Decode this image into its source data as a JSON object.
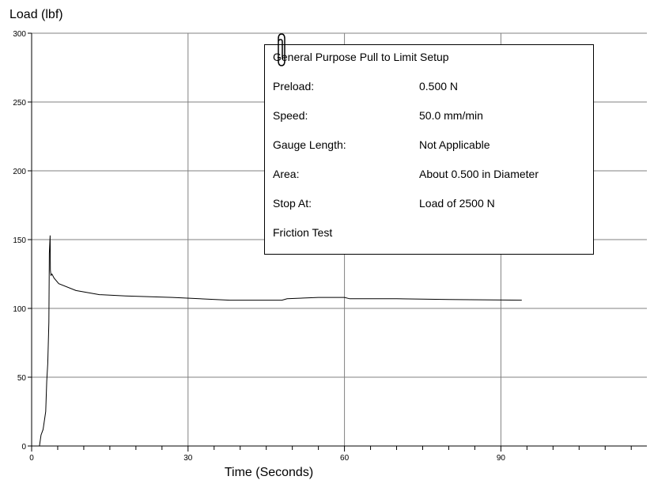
{
  "chart_data": {
    "type": "line",
    "title": "",
    "xlabel": "Time (Seconds)",
    "ylabel": "Load (lbf)",
    "xlim": [
      0,
      118
    ],
    "ylim": [
      0,
      300
    ],
    "x_ticks": [
      0,
      30,
      60,
      90
    ],
    "y_ticks": [
      0,
      50,
      100,
      150,
      200,
      250,
      300
    ],
    "grid": true,
    "series": [
      {
        "x": [
          1.5,
          1.8,
          2.2,
          2.7,
          2.9,
          3.1,
          3.3,
          3.4,
          3.55,
          3.6,
          3.7,
          3.9,
          4.3,
          5.2,
          8.5,
          13,
          18,
          27,
          38,
          48,
          49,
          55,
          60,
          61,
          70,
          80,
          94
        ],
        "values": [
          0,
          8,
          12,
          25,
          47,
          60,
          90,
          140,
          153,
          128,
          124,
          125,
          122,
          118,
          113,
          110,
          109,
          108,
          106,
          106,
          107,
          108,
          108,
          107,
          107,
          106.5,
          106
        ]
      }
    ]
  },
  "info_box": {
    "title": "General Purpose Pull to Limit Setup",
    "rows": [
      {
        "label": "Preload:",
        "value": "0.500 N"
      },
      {
        "label": "Speed:",
        "value": "50.0 mm/min"
      },
      {
        "label": "Gauge Length:",
        "value": "Not Applicable"
      },
      {
        "label": "Area:",
        "value": "About 0.500 in Diameter"
      },
      {
        "label": "Stop At:",
        "value": "Load of 2500 N"
      }
    ],
    "note": "Friction Test"
  },
  "icons": {
    "attachment": "paperclip-icon"
  }
}
